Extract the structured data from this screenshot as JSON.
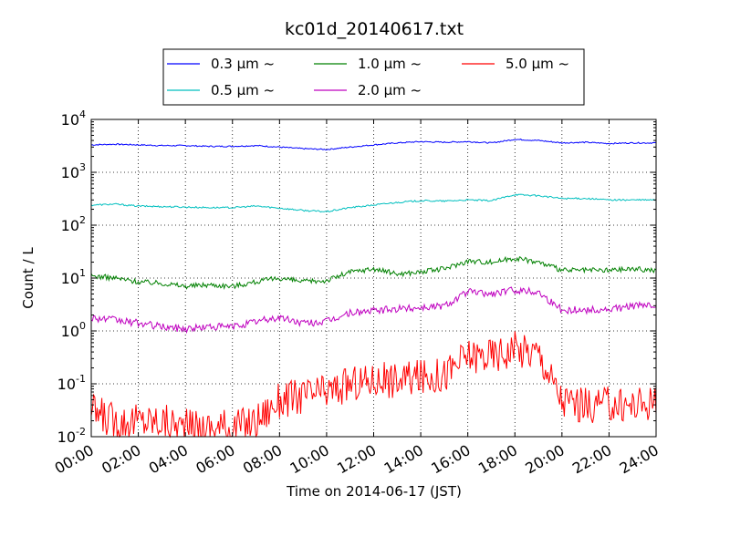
{
  "chart_data": {
    "type": "line",
    "title": "kc01d_20140617.txt",
    "xlabel": "Time on 2014-06-17 (JST)",
    "ylabel": "Count / L",
    "yscale": "log",
    "ylim": [
      0.01,
      10000
    ],
    "xlim": [
      "00:00",
      "24:00"
    ],
    "x_tick_labels": [
      "00:00",
      "02:00",
      "04:00",
      "06:00",
      "08:00",
      "10:00",
      "12:00",
      "14:00",
      "16:00",
      "18:00",
      "20:00",
      "22:00",
      "24:00"
    ],
    "y_tick_labels": [
      {
        "base": "10",
        "exp": "-2"
      },
      {
        "base": "10",
        "exp": "-1"
      },
      {
        "base": "10",
        "exp": "0"
      },
      {
        "base": "10",
        "exp": "1"
      },
      {
        "base": "10",
        "exp": "2"
      },
      {
        "base": "10",
        "exp": "3"
      },
      {
        "base": "10",
        "exp": "4"
      }
    ],
    "grid": true,
    "legend_position": "top-center",
    "x": [
      "00:00",
      "01:00",
      "02:00",
      "03:00",
      "04:00",
      "05:00",
      "06:00",
      "07:00",
      "08:00",
      "09:00",
      "10:00",
      "11:00",
      "12:00",
      "13:00",
      "14:00",
      "15:00",
      "16:00",
      "17:00",
      "18:00",
      "19:00",
      "20:00",
      "21:00",
      "22:00",
      "23:00",
      "24:00"
    ],
    "series": [
      {
        "name": "0.3 μm ~",
        "color": "#0000ff",
        "values": [
          3300,
          3400,
          3300,
          3200,
          3200,
          3100,
          3100,
          3200,
          3000,
          2800,
          2700,
          3000,
          3300,
          3600,
          3800,
          3700,
          3800,
          3600,
          4200,
          4000,
          3600,
          3700,
          3500,
          3600,
          3600
        ]
      },
      {
        "name": "0.5 μm ~",
        "color": "#00bfbf",
        "values": [
          240,
          250,
          230,
          225,
          220,
          215,
          215,
          230,
          210,
          190,
          180,
          215,
          240,
          270,
          290,
          285,
          300,
          290,
          380,
          360,
          320,
          320,
          300,
          300,
          300
        ]
      },
      {
        "name": "1.0 μm ~",
        "color": "#008000",
        "values": [
          11,
          10,
          8.5,
          8,
          7,
          7.5,
          7,
          8.5,
          10,
          8.5,
          9,
          13,
          15,
          12,
          13,
          15,
          21,
          20,
          24,
          20,
          14,
          14,
          14,
          15,
          14
        ]
      },
      {
        "name": "2.0 μm ~",
        "color": "#bf00bf",
        "values": [
          1.8,
          1.6,
          1.4,
          1.2,
          1.1,
          1.2,
          1.2,
          1.5,
          1.8,
          1.4,
          1.5,
          2.2,
          2.4,
          2.6,
          2.8,
          3,
          5.5,
          5,
          6,
          5.5,
          2.5,
          2.5,
          2.5,
          3,
          3
        ]
      },
      {
        "name": "5.0 μm ~",
        "color": "#ff0000",
        "values": [
          0.03,
          0.02,
          0.02,
          0.02,
          0.015,
          0.015,
          0.015,
          0.02,
          0.05,
          0.06,
          0.07,
          0.1,
          0.12,
          0.12,
          0.13,
          0.15,
          0.35,
          0.35,
          0.45,
          0.4,
          0.05,
          0.04,
          0.04,
          0.04,
          0.05
        ]
      }
    ]
  }
}
